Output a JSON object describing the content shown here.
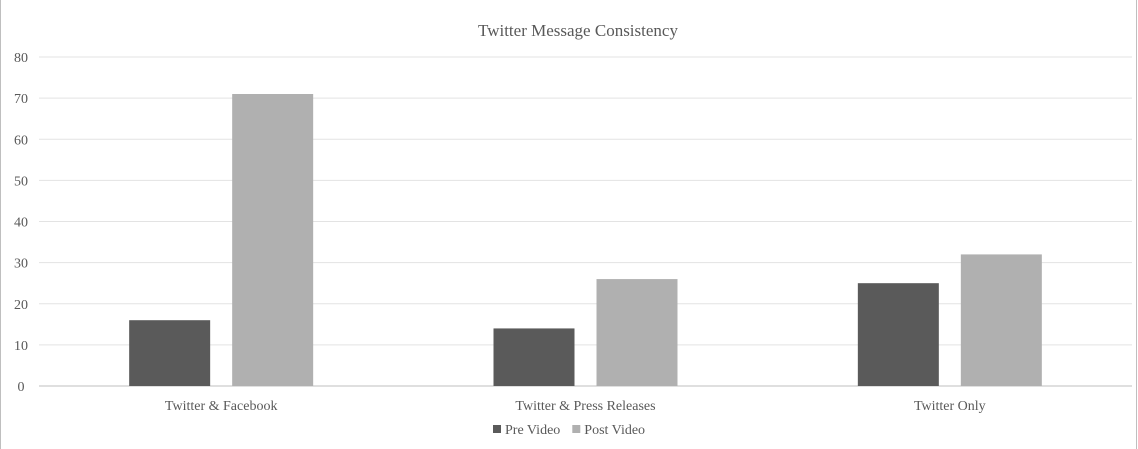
{
  "chart_data": {
    "type": "bar",
    "title": "Twitter Message Consistency",
    "xlabel": "",
    "ylabel": "",
    "categories": [
      "Twitter & Facebook",
      "Twitter & Press Releases",
      "Twitter Only"
    ],
    "series": [
      {
        "name": "Pre Video",
        "values": [
          16,
          14,
          25
        ],
        "color": "#5a5a5a"
      },
      {
        "name": "Post Video",
        "values": [
          71,
          26,
          32
        ],
        "color": "#b0b0b0"
      }
    ],
    "ylim": [
      0,
      80
    ],
    "yticks": [
      0,
      10,
      20,
      30,
      40,
      50,
      60,
      70,
      80
    ],
    "grid": true,
    "legend": "bottom-center",
    "colors": {
      "gridline": "#e3e3e3",
      "axis": "#bfbfbf",
      "text": "#595959"
    }
  }
}
